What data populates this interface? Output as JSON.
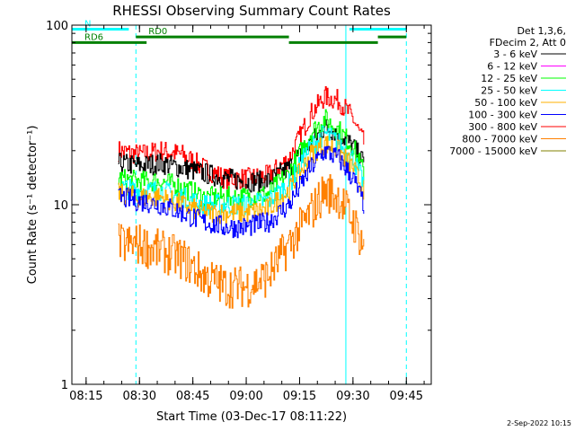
{
  "chart_data": {
    "type": "line",
    "title": "RHESSI Observing Summary Count Rates",
    "xlabel": "Start Time (03-Dec-17 08:11:22)",
    "ylabel": "Count Rate (s⁻¹ detector⁻¹)",
    "yscale": "log",
    "ylim": [
      1,
      100
    ],
    "xlim": [
      "08:11",
      "09:52"
    ],
    "x_ticks": [
      "08:15",
      "08:30",
      "08:45",
      "09:00",
      "09:15",
      "09:30",
      "09:45"
    ],
    "y_ticks": [
      "1",
      "10",
      "100"
    ],
    "legend_header": [
      "Det 1,3,6,",
      "FDecim 2, Att 0"
    ],
    "legend_position": "right",
    "series": [
      {
        "name": "3 - 6 keV",
        "color": "#000000",
        "x": [
          "08:24",
          "08:30",
          "08:36",
          "08:42",
          "08:48",
          "08:54",
          "09:00",
          "09:06",
          "09:12",
          "09:18",
          "09:22",
          "09:26",
          "09:30",
          "09:33"
        ],
        "y": [
          17,
          16.5,
          17,
          16,
          15,
          14,
          13.5,
          13.5,
          16,
          22,
          27,
          25,
          21,
          17
        ]
      },
      {
        "name": "6 - 12 keV",
        "color": "#ff00ff",
        "x": [],
        "y": []
      },
      {
        "name": "12 - 25 keV",
        "color": "#00ff00",
        "x": [
          "08:24",
          "08:30",
          "08:36",
          "08:42",
          "08:48",
          "08:54",
          "09:00",
          "09:06",
          "09:12",
          "09:18",
          "09:22",
          "09:26",
          "09:30",
          "09:33"
        ],
        "y": [
          14,
          13.5,
          13.5,
          12.5,
          11,
          11,
          11,
          11.5,
          15,
          25,
          30,
          26,
          21,
          15
        ]
      },
      {
        "name": "25 - 50 keV",
        "color": "#00ffff",
        "x": [
          "08:24",
          "08:30",
          "08:36",
          "08:42",
          "08:48",
          "08:54",
          "09:00",
          "09:06",
          "09:12",
          "09:18",
          "09:22",
          "09:26",
          "09:30",
          "09:33"
        ],
        "y": [
          12.5,
          12,
          12,
          11,
          10,
          10,
          10,
          10.5,
          13,
          21,
          25,
          22,
          18,
          13
        ]
      },
      {
        "name": "50 - 100 keV",
        "color": "#ffb000",
        "x": [
          "08:24",
          "08:30",
          "08:36",
          "08:42",
          "08:48",
          "08:54",
          "09:00",
          "09:06",
          "09:12",
          "09:18",
          "09:22",
          "09:26",
          "09:30",
          "09:33"
        ],
        "y": [
          11.5,
          11,
          11,
          10,
          9,
          9,
          9,
          9.5,
          12,
          19,
          22,
          20,
          16,
          12
        ]
      },
      {
        "name": "100 - 300 keV",
        "color": "#0000ff",
        "x": [
          "08:24",
          "08:30",
          "08:36",
          "08:42",
          "08:48",
          "08:54",
          "09:00",
          "09:06",
          "09:12",
          "09:18",
          "09:22",
          "09:26",
          "09:30",
          "09:33"
        ],
        "y": [
          11,
          10.5,
          10,
          9,
          8,
          7.5,
          7.5,
          8,
          10,
          16,
          20,
          18,
          14,
          10
        ]
      },
      {
        "name": "300 - 800 keV",
        "color": "#ff0000",
        "x": [
          "08:24",
          "08:30",
          "08:36",
          "08:42",
          "08:48",
          "08:54",
          "09:00",
          "09:06",
          "09:12",
          "09:18",
          "09:22",
          "09:26",
          "09:30",
          "09:33"
        ],
        "y": [
          20,
          19,
          20,
          19,
          16,
          14,
          14,
          14.5,
          18,
          32,
          40,
          38,
          30,
          22
        ]
      },
      {
        "name": "800 - 7000 keV",
        "color": "#ff8000",
        "x": [
          "08:24",
          "08:30",
          "08:36",
          "08:42",
          "08:48",
          "08:54",
          "09:00",
          "09:06",
          "09:12",
          "09:18",
          "09:22",
          "09:26",
          "09:30",
          "09:33"
        ],
        "y": [
          6,
          6,
          5.5,
          5,
          4,
          3.5,
          3.5,
          4,
          6,
          9,
          12,
          11,
          8,
          6
        ]
      },
      {
        "name": "7000 - 15000 keV",
        "color": "#808000",
        "x": [],
        "y": []
      }
    ],
    "state_bars": [
      {
        "label": "N",
        "color": "#00ffff",
        "start": "08:11",
        "end": "08:27",
        "level": 95
      },
      {
        "label": "",
        "color": "#00ffff",
        "start": "09:29",
        "end": "09:45",
        "level": 95
      },
      {
        "label": "RD0",
        "color": "#008000",
        "start": "08:29",
        "end": "09:12",
        "level": 86
      },
      {
        "label": "",
        "color": "#008000",
        "start": "09:37",
        "end": "09:45",
        "level": 86
      },
      {
        "label": "RD6",
        "color": "#008000",
        "start": "08:11",
        "end": "08:32",
        "level": 80
      },
      {
        "label": "",
        "color": "#008000",
        "start": "09:12",
        "end": "09:37",
        "level": 80
      }
    ],
    "vertical_markers": [
      {
        "time": "08:11",
        "style": "solid",
        "color": "#00ffff"
      },
      {
        "time": "08:29",
        "style": "dashed",
        "color": "#00ffff"
      },
      {
        "time": "09:28",
        "style": "solid",
        "color": "#00ffff"
      },
      {
        "time": "09:45",
        "style": "dashed",
        "color": "#00ffff"
      }
    ]
  },
  "footer": {
    "timestamp": "2-Sep-2022 10:15"
  }
}
